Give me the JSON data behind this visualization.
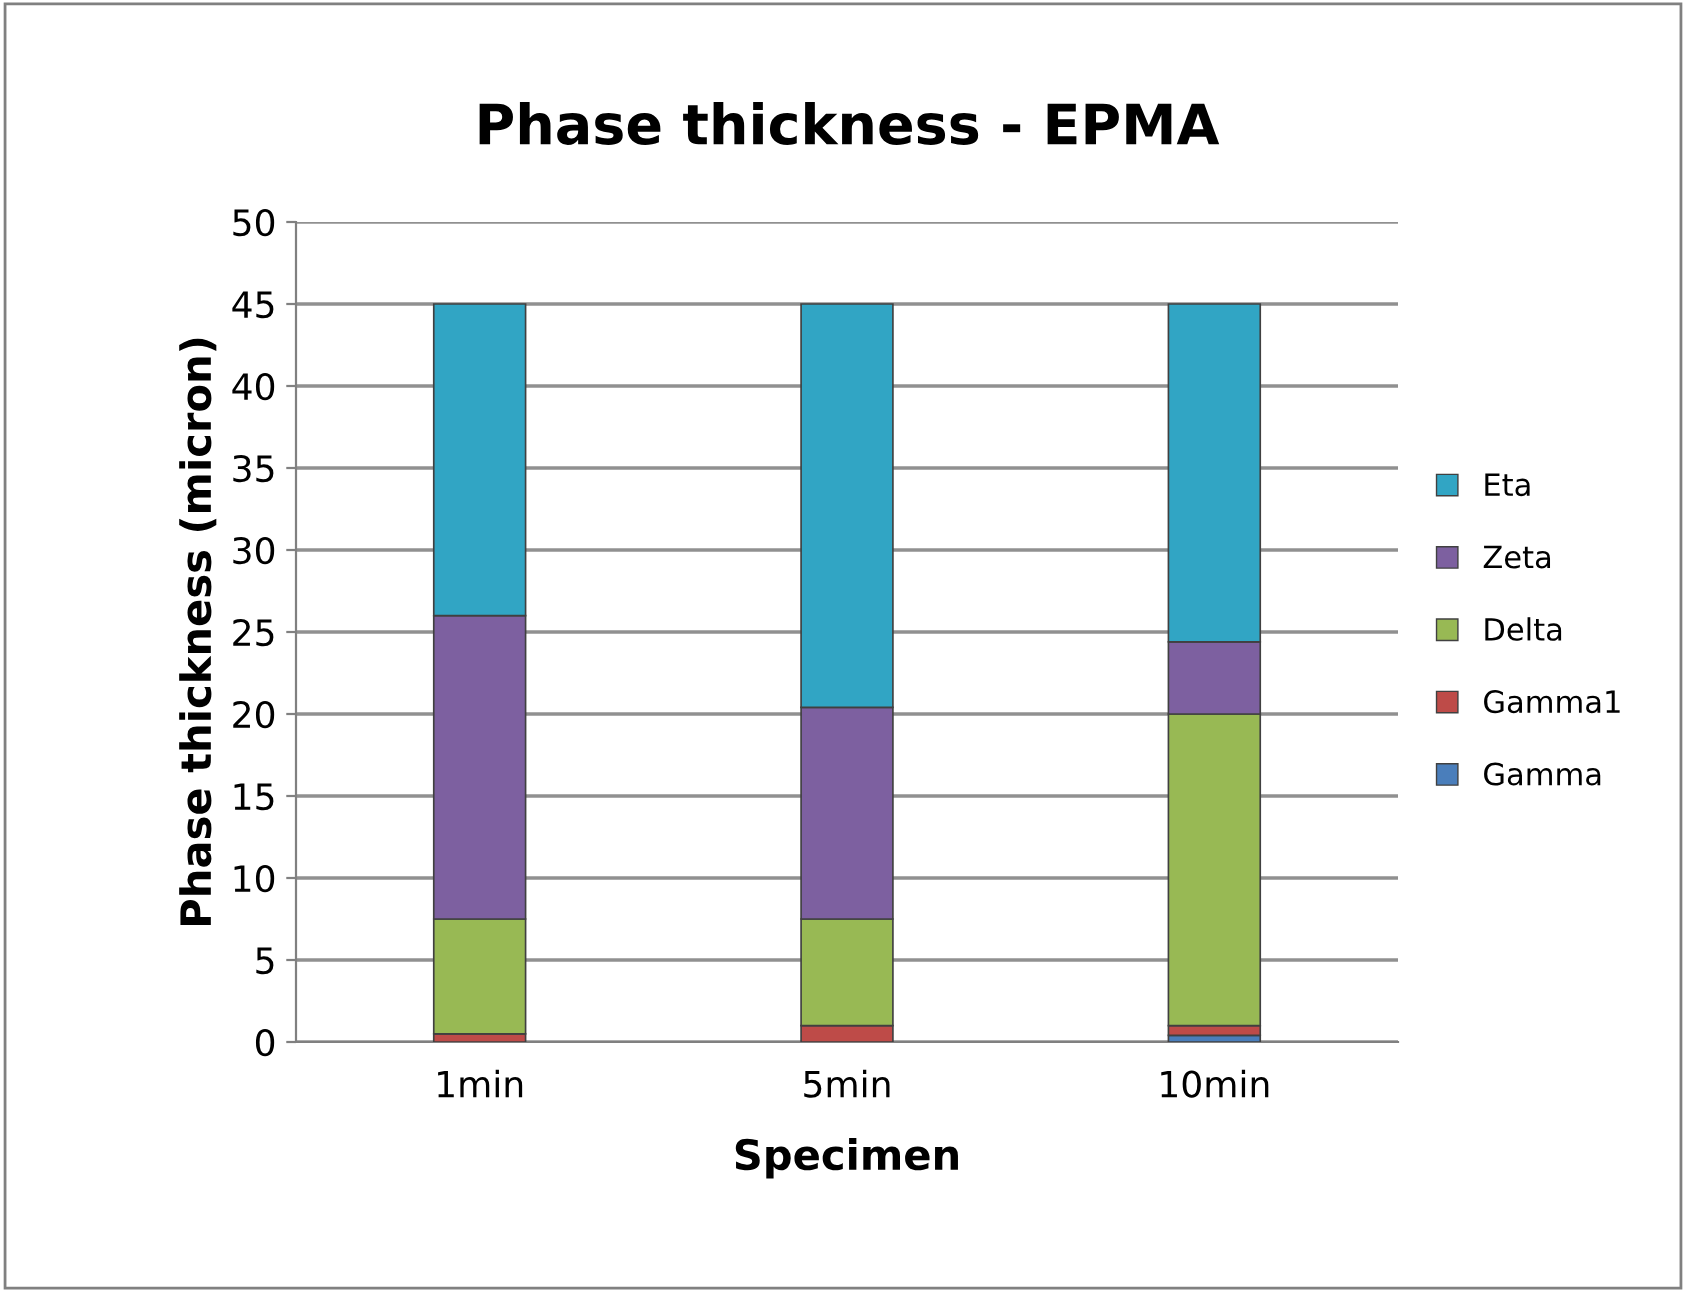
{
  "chart_data": {
    "type": "bar",
    "stacked": true,
    "title": "Phase thickness - EPMA",
    "xlabel": "Specimen",
    "ylabel": "Phase thickness (micron)",
    "categories": [
      "1min",
      "5min",
      "10min"
    ],
    "series": [
      {
        "name": "Gamma",
        "color": "#4a7ebb",
        "values": [
          0,
          0,
          0.4
        ]
      },
      {
        "name": "Gamma1",
        "color": "#be4b48",
        "values": [
          0.5,
          1.0,
          0.6
        ]
      },
      {
        "name": "Delta",
        "color": "#98b954",
        "values": [
          7.0,
          6.5,
          19.0
        ]
      },
      {
        "name": "Zeta",
        "color": "#7d60a0",
        "values": [
          18.5,
          12.9,
          4.4
        ]
      },
      {
        "name": "Eta",
        "color": "#31a5c4",
        "values": [
          19.0,
          24.6,
          20.6
        ]
      }
    ],
    "ylim": [
      0,
      50
    ],
    "yticks": [
      0,
      5,
      10,
      15,
      20,
      25,
      30,
      35,
      40,
      45,
      50
    ],
    "grid": "y",
    "legend": "right"
  }
}
